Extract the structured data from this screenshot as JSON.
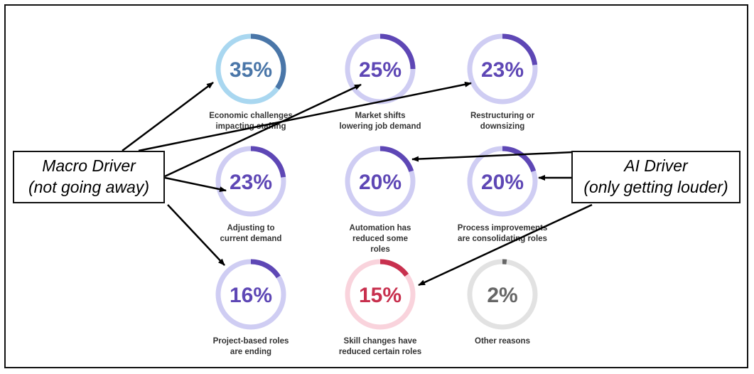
{
  "chart_data": {
    "type": "donut-grid",
    "unit": "%",
    "items": [
      {
        "value": 35,
        "label": "35%",
        "caption": [
          "Economic challenges",
          "impacting staffing"
        ],
        "color": "#4a76a8",
        "track": "#a9d7f0",
        "pct_color": "#4a76a8"
      },
      {
        "value": 25,
        "label": "25%",
        "caption": [
          "Market shifts",
          "lowering job demand"
        ],
        "color": "#5e47b5",
        "track": "#cfcdf3",
        "pct_color": "#5e47b5"
      },
      {
        "value": 23,
        "label": "23%",
        "caption": [
          "Restructuring or",
          "downsizing"
        ],
        "color": "#5e47b5",
        "track": "#cfcdf3",
        "pct_color": "#5e47b5"
      },
      {
        "value": 23,
        "label": "23%",
        "caption": [
          "Adjusting to",
          "current demand"
        ],
        "color": "#5e47b5",
        "track": "#cfcdf3",
        "pct_color": "#5e47b5"
      },
      {
        "value": 20,
        "label": "20%",
        "caption": [
          "Automation has",
          "reduced some",
          "roles"
        ],
        "color": "#5e47b5",
        "track": "#cfcdf3",
        "pct_color": "#5e47b5"
      },
      {
        "value": 20,
        "label": "20%",
        "caption": [
          "Process improvements",
          "are consolidating roles"
        ],
        "color": "#5e47b5",
        "track": "#cfcdf3",
        "pct_color": "#5e47b5"
      },
      {
        "value": 16,
        "label": "16%",
        "caption": [
          "Project-based roles",
          "are ending"
        ],
        "color": "#5e47b5",
        "track": "#cfcdf3",
        "pct_color": "#5e47b5"
      },
      {
        "value": 15,
        "label": "15%",
        "caption": [
          "Skill changes have",
          "reduced certain roles"
        ],
        "color": "#c8304e",
        "track": "#f9d3dc",
        "pct_color": "#c8304e"
      },
      {
        "value": 2,
        "label": "2%",
        "caption": [
          "Other reasons"
        ],
        "color": "#666666",
        "track": "#e2e2e2",
        "pct_color": "#666666"
      }
    ]
  },
  "callouts": {
    "macro": {
      "line1": "Macro Driver",
      "line2": "(not going away)",
      "targets": [
        "Economic challenges",
        "Market shifts",
        "Restructuring or downsizing",
        "Adjusting to current demand",
        "Project-based roles"
      ]
    },
    "ai": {
      "line1": "AI Driver",
      "line2": "(only getting louder)",
      "targets": [
        "Automation has reduced some roles",
        "Process improvements",
        "Skill changes have reduced certain roles"
      ]
    }
  }
}
